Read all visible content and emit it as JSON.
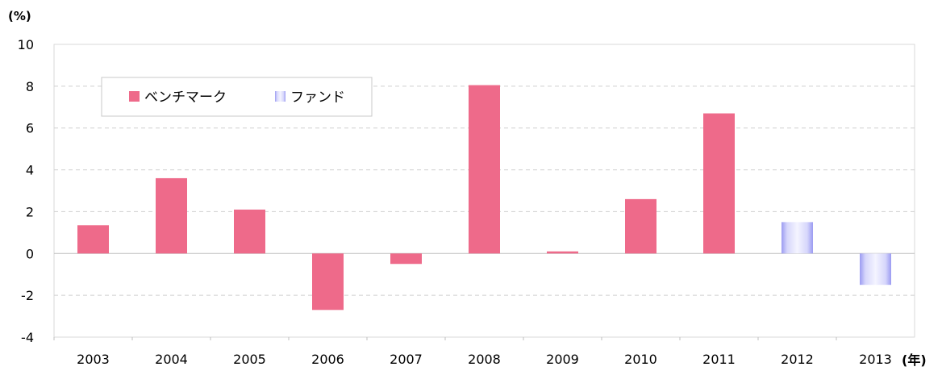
{
  "chart_data": {
    "type": "bar",
    "title": "",
    "ylabel": "(%)",
    "xlabel": "(年)",
    "ylim": [
      -4,
      10
    ],
    "yticks": [
      10,
      8,
      6,
      4,
      2,
      0,
      -2,
      -4
    ],
    "grid": true,
    "legend_position": "top-left",
    "categories": [
      "2003",
      "2004",
      "2005",
      "2006",
      "2007",
      "2008",
      "2009",
      "2010",
      "2011",
      "2012",
      "2013"
    ],
    "series": [
      {
        "name": "ベンチマーク",
        "color": "#ee6a8a",
        "values": [
          1.35,
          3.6,
          2.1,
          -2.7,
          -0.5,
          8.05,
          0.1,
          2.6,
          6.7,
          null,
          null
        ]
      },
      {
        "name": "ファンド",
        "color": "#9b9bf2",
        "values": [
          null,
          null,
          null,
          null,
          null,
          null,
          null,
          null,
          null,
          1.5,
          -1.5
        ]
      }
    ]
  }
}
